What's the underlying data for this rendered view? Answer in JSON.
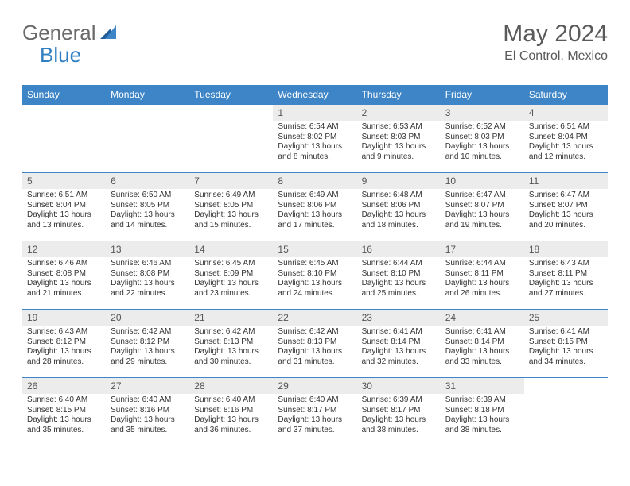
{
  "logo": {
    "text1": "General",
    "text2": "Blue"
  },
  "header": {
    "month_title": "May 2024",
    "location": "El Control, Mexico"
  },
  "colors": {
    "accent": "#3d85c6",
    "daynum_bg": "#ececec",
    "text": "#333333",
    "header_text": "#5a5a5a",
    "white": "#ffffff"
  },
  "day_headers": [
    "Sunday",
    "Monday",
    "Tuesday",
    "Wednesday",
    "Thursday",
    "Friday",
    "Saturday"
  ],
  "weeks": [
    [
      {
        "num": "",
        "sunrise": "",
        "sunset": "",
        "daylight": ""
      },
      {
        "num": "",
        "sunrise": "",
        "sunset": "",
        "daylight": ""
      },
      {
        "num": "",
        "sunrise": "",
        "sunset": "",
        "daylight": ""
      },
      {
        "num": "1",
        "sunrise": "Sunrise: 6:54 AM",
        "sunset": "Sunset: 8:02 PM",
        "daylight": "Daylight: 13 hours and 8 minutes."
      },
      {
        "num": "2",
        "sunrise": "Sunrise: 6:53 AM",
        "sunset": "Sunset: 8:03 PM",
        "daylight": "Daylight: 13 hours and 9 minutes."
      },
      {
        "num": "3",
        "sunrise": "Sunrise: 6:52 AM",
        "sunset": "Sunset: 8:03 PM",
        "daylight": "Daylight: 13 hours and 10 minutes."
      },
      {
        "num": "4",
        "sunrise": "Sunrise: 6:51 AM",
        "sunset": "Sunset: 8:04 PM",
        "daylight": "Daylight: 13 hours and 12 minutes."
      }
    ],
    [
      {
        "num": "5",
        "sunrise": "Sunrise: 6:51 AM",
        "sunset": "Sunset: 8:04 PM",
        "daylight": "Daylight: 13 hours and 13 minutes."
      },
      {
        "num": "6",
        "sunrise": "Sunrise: 6:50 AM",
        "sunset": "Sunset: 8:05 PM",
        "daylight": "Daylight: 13 hours and 14 minutes."
      },
      {
        "num": "7",
        "sunrise": "Sunrise: 6:49 AM",
        "sunset": "Sunset: 8:05 PM",
        "daylight": "Daylight: 13 hours and 15 minutes."
      },
      {
        "num": "8",
        "sunrise": "Sunrise: 6:49 AM",
        "sunset": "Sunset: 8:06 PM",
        "daylight": "Daylight: 13 hours and 17 minutes."
      },
      {
        "num": "9",
        "sunrise": "Sunrise: 6:48 AM",
        "sunset": "Sunset: 8:06 PM",
        "daylight": "Daylight: 13 hours and 18 minutes."
      },
      {
        "num": "10",
        "sunrise": "Sunrise: 6:47 AM",
        "sunset": "Sunset: 8:07 PM",
        "daylight": "Daylight: 13 hours and 19 minutes."
      },
      {
        "num": "11",
        "sunrise": "Sunrise: 6:47 AM",
        "sunset": "Sunset: 8:07 PM",
        "daylight": "Daylight: 13 hours and 20 minutes."
      }
    ],
    [
      {
        "num": "12",
        "sunrise": "Sunrise: 6:46 AM",
        "sunset": "Sunset: 8:08 PM",
        "daylight": "Daylight: 13 hours and 21 minutes."
      },
      {
        "num": "13",
        "sunrise": "Sunrise: 6:46 AM",
        "sunset": "Sunset: 8:08 PM",
        "daylight": "Daylight: 13 hours and 22 minutes."
      },
      {
        "num": "14",
        "sunrise": "Sunrise: 6:45 AM",
        "sunset": "Sunset: 8:09 PM",
        "daylight": "Daylight: 13 hours and 23 minutes."
      },
      {
        "num": "15",
        "sunrise": "Sunrise: 6:45 AM",
        "sunset": "Sunset: 8:10 PM",
        "daylight": "Daylight: 13 hours and 24 minutes."
      },
      {
        "num": "16",
        "sunrise": "Sunrise: 6:44 AM",
        "sunset": "Sunset: 8:10 PM",
        "daylight": "Daylight: 13 hours and 25 minutes."
      },
      {
        "num": "17",
        "sunrise": "Sunrise: 6:44 AM",
        "sunset": "Sunset: 8:11 PM",
        "daylight": "Daylight: 13 hours and 26 minutes."
      },
      {
        "num": "18",
        "sunrise": "Sunrise: 6:43 AM",
        "sunset": "Sunset: 8:11 PM",
        "daylight": "Daylight: 13 hours and 27 minutes."
      }
    ],
    [
      {
        "num": "19",
        "sunrise": "Sunrise: 6:43 AM",
        "sunset": "Sunset: 8:12 PM",
        "daylight": "Daylight: 13 hours and 28 minutes."
      },
      {
        "num": "20",
        "sunrise": "Sunrise: 6:42 AM",
        "sunset": "Sunset: 8:12 PM",
        "daylight": "Daylight: 13 hours and 29 minutes."
      },
      {
        "num": "21",
        "sunrise": "Sunrise: 6:42 AM",
        "sunset": "Sunset: 8:13 PM",
        "daylight": "Daylight: 13 hours and 30 minutes."
      },
      {
        "num": "22",
        "sunrise": "Sunrise: 6:42 AM",
        "sunset": "Sunset: 8:13 PM",
        "daylight": "Daylight: 13 hours and 31 minutes."
      },
      {
        "num": "23",
        "sunrise": "Sunrise: 6:41 AM",
        "sunset": "Sunset: 8:14 PM",
        "daylight": "Daylight: 13 hours and 32 minutes."
      },
      {
        "num": "24",
        "sunrise": "Sunrise: 6:41 AM",
        "sunset": "Sunset: 8:14 PM",
        "daylight": "Daylight: 13 hours and 33 minutes."
      },
      {
        "num": "25",
        "sunrise": "Sunrise: 6:41 AM",
        "sunset": "Sunset: 8:15 PM",
        "daylight": "Daylight: 13 hours and 34 minutes."
      }
    ],
    [
      {
        "num": "26",
        "sunrise": "Sunrise: 6:40 AM",
        "sunset": "Sunset: 8:15 PM",
        "daylight": "Daylight: 13 hours and 35 minutes."
      },
      {
        "num": "27",
        "sunrise": "Sunrise: 6:40 AM",
        "sunset": "Sunset: 8:16 PM",
        "daylight": "Daylight: 13 hours and 35 minutes."
      },
      {
        "num": "28",
        "sunrise": "Sunrise: 6:40 AM",
        "sunset": "Sunset: 8:16 PM",
        "daylight": "Daylight: 13 hours and 36 minutes."
      },
      {
        "num": "29",
        "sunrise": "Sunrise: 6:40 AM",
        "sunset": "Sunset: 8:17 PM",
        "daylight": "Daylight: 13 hours and 37 minutes."
      },
      {
        "num": "30",
        "sunrise": "Sunrise: 6:39 AM",
        "sunset": "Sunset: 8:17 PM",
        "daylight": "Daylight: 13 hours and 38 minutes."
      },
      {
        "num": "31",
        "sunrise": "Sunrise: 6:39 AM",
        "sunset": "Sunset: 8:18 PM",
        "daylight": "Daylight: 13 hours and 38 minutes."
      },
      {
        "num": "",
        "sunrise": "",
        "sunset": "",
        "daylight": ""
      }
    ]
  ]
}
